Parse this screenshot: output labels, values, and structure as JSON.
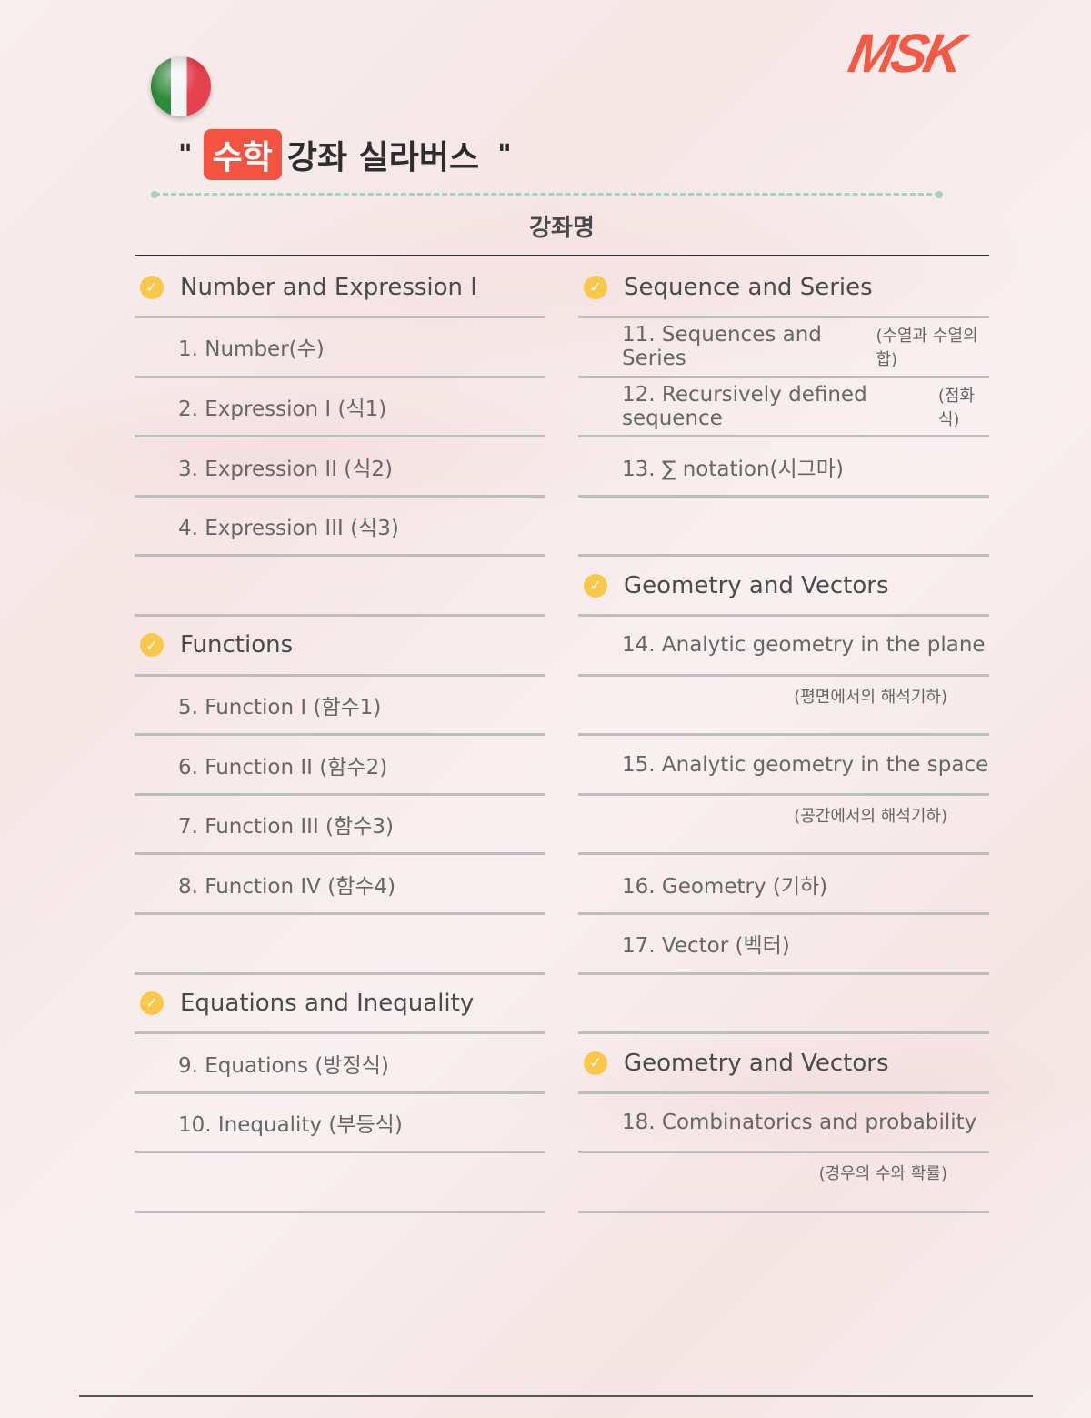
{
  "logo": "MSK",
  "title": {
    "open_quote": "\"",
    "highlight": "수학",
    "rest": "강좌 실라버스",
    "close_quote": "\""
  },
  "column_header": "강좌명",
  "left": [
    {
      "type": "header",
      "text": "Number and Expression I"
    },
    {
      "type": "item",
      "text": "1. Number(수)"
    },
    {
      "type": "item",
      "text": "2. Expression I (식1)"
    },
    {
      "type": "item",
      "text": "3. Expression II (식2)"
    },
    {
      "type": "item",
      "text": "4. Expression III (식3)"
    },
    {
      "type": "empty"
    },
    {
      "type": "header",
      "text": "Functions"
    },
    {
      "type": "item",
      "text": "5. Function I (함수1)"
    },
    {
      "type": "item",
      "text": "6. Function II (함수2)"
    },
    {
      "type": "item",
      "text": "7. Function III (함수3)"
    },
    {
      "type": "item",
      "text": "8. Function IV (함수4)"
    },
    {
      "type": "empty"
    },
    {
      "type": "header",
      "text": "Equations and Inequality"
    },
    {
      "type": "item",
      "text": "9. Equations (방정식)"
    },
    {
      "type": "item",
      "text": "10. Inequality (부등식)"
    },
    {
      "type": "empty"
    }
  ],
  "right": [
    {
      "type": "header",
      "text": "Sequence and Series"
    },
    {
      "type": "item",
      "text": "11. Sequences and Series",
      "ko": "(수열과 수열의합)"
    },
    {
      "type": "item",
      "text": "12. Recursively defined sequence",
      "ko": "(점화식)"
    },
    {
      "type": "item",
      "text": "13. ∑ notation(시그마)"
    },
    {
      "type": "empty"
    },
    {
      "type": "header",
      "text": "Geometry and Vectors"
    },
    {
      "type": "item",
      "text": "14. Analytic geometry in the plane"
    },
    {
      "type": "sub",
      "text": "(평면에서의 해석기하)"
    },
    {
      "type": "item",
      "text": "15. Analytic geometry in the space"
    },
    {
      "type": "sub",
      "text": "(공간에서의 해석기하)"
    },
    {
      "type": "item",
      "text": "16. Geometry (기하)"
    },
    {
      "type": "item",
      "text": "17. Vector (벡터)"
    },
    {
      "type": "empty"
    },
    {
      "type": "header",
      "text": "Geometry and Vectors"
    },
    {
      "type": "item",
      "text": "18. Combinatorics and probability"
    },
    {
      "type": "sub",
      "text": "(경우의 수와 확률)"
    }
  ],
  "check_glyph": "✓"
}
